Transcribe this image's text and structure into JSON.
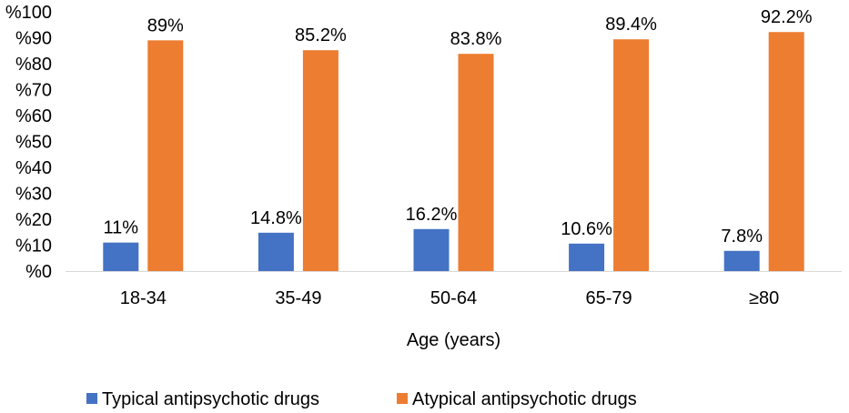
{
  "chart_data": {
    "type": "bar",
    "title": "",
    "xlabel": "Age (years)",
    "ylabel": "",
    "ylim": [
      0,
      100
    ],
    "y_ticks": [
      "%0",
      "%10",
      "%20",
      "%30",
      "%40",
      "%50",
      "%60",
      "%70",
      "%80",
      "%90",
      "%100"
    ],
    "categories": [
      "18-34",
      "35-49",
      "50-64",
      "65-79",
      "≥80"
    ],
    "series": [
      {
        "name": "Typical antipsychotic drugs",
        "color": "#4472C4",
        "values": [
          11,
          14.8,
          16.2,
          10.6,
          7.8
        ],
        "labels": [
          "11%",
          "14.8%",
          "16.2%",
          "10.6%",
          "7.8%"
        ]
      },
      {
        "name": "Atypical antipsychotic drugs",
        "color": "#ED7D31",
        "values": [
          89,
          85.2,
          83.8,
          89.4,
          92.2
        ],
        "labels": [
          "89%",
          "85.2%",
          "83.8%",
          "89.4%",
          "92.2%"
        ]
      }
    ],
    "grid": false,
    "legend_position": "bottom"
  }
}
